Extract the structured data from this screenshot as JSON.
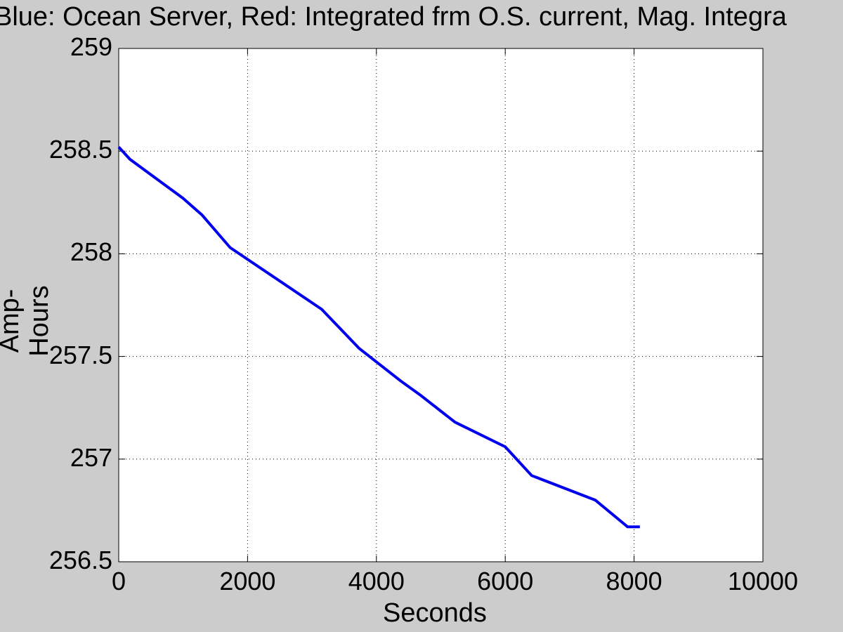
{
  "chart_data": {
    "type": "line",
    "title": "Blue: Ocean Server, Red: Integrated frm O.S. current, Mag. Integra",
    "xlabel": "Seconds",
    "ylabel": "Amp-Hours",
    "xlim": [
      0,
      10000
    ],
    "ylim": [
      256.5,
      259
    ],
    "xticks": [
      "0",
      "2000",
      "4000",
      "6000",
      "8000",
      "10000"
    ],
    "yticks": [
      "256.5",
      "257",
      "257.5",
      "258",
      "258.5",
      "259"
    ],
    "grid": true,
    "legend": null,
    "series": [
      {
        "name": "Ocean Server",
        "color": "#0000ee",
        "x": [
          0,
          175,
          1000,
          1290,
          1730,
          3150,
          3730,
          4380,
          4690,
          5220,
          6000,
          6410,
          7400,
          7900,
          8090
        ],
        "y": [
          258.52,
          258.46,
          258.27,
          258.19,
          258.03,
          257.73,
          257.54,
          257.38,
          257.31,
          257.18,
          257.06,
          256.92,
          256.8,
          256.67,
          256.67
        ]
      }
    ]
  }
}
